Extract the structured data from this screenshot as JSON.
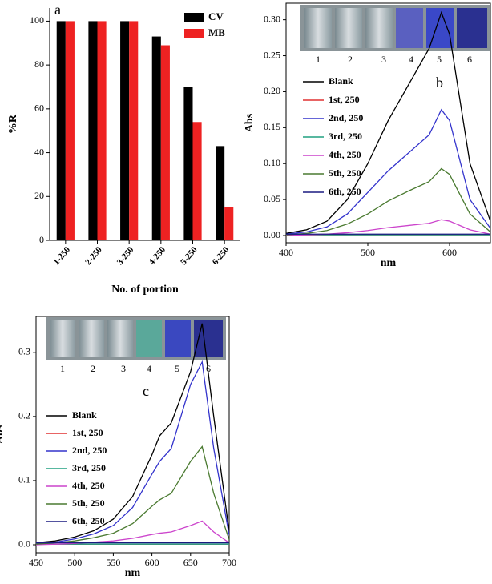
{
  "chart_data": [
    {
      "type": "bar",
      "panel_label": "a",
      "x_label": "No. of portion",
      "y_label": "%R",
      "categories": [
        "1-250",
        "2-250",
        "3-250",
        "4-250",
        "5-250",
        "6-250"
      ],
      "series": [
        {
          "name": "CV",
          "color": "#000000",
          "values": [
            100,
            100,
            100,
            93,
            70,
            43
          ]
        },
        {
          "name": "MB",
          "color": "#ee2222",
          "values": [
            100,
            100,
            100,
            89,
            54,
            15
          ]
        }
      ],
      "ylim": [
        0,
        106
      ],
      "yticks": [
        0,
        20,
        40,
        60,
        80,
        100
      ],
      "legend": "top-right"
    },
    {
      "type": "line",
      "panel_label": "b",
      "x_label": "nm",
      "y_label": "Abs",
      "inset_labels": [
        "1",
        "2",
        "3",
        "4",
        "5",
        "6"
      ],
      "x": [
        400,
        425,
        450,
        475,
        500,
        525,
        550,
        575,
        590,
        600,
        625,
        650
      ],
      "series": [
        {
          "name": "Blank",
          "color": "#000000",
          "values": [
            0.003,
            0.008,
            0.02,
            0.05,
            0.1,
            0.16,
            0.21,
            0.26,
            0.31,
            0.28,
            0.1,
            0.02
          ]
        },
        {
          "name": "1st, 250",
          "color": "#e03030",
          "values": [
            0.001,
            0.001,
            0.001,
            0.001,
            0.001,
            0.001,
            0.001,
            0.001,
            0.001,
            0.001,
            0.001,
            0.001
          ]
        },
        {
          "name": "2nd, 250",
          "color": "#3333cc",
          "values": [
            0.002,
            0.005,
            0.012,
            0.03,
            0.06,
            0.09,
            0.115,
            0.14,
            0.175,
            0.16,
            0.05,
            0.01
          ]
        },
        {
          "name": "3rd, 250",
          "color": "#20a080",
          "values": [
            0.001,
            0.001,
            0.001,
            0.001,
            0.001,
            0.001,
            0.001,
            0.001,
            0.001,
            0.001,
            0.001,
            0.001
          ]
        },
        {
          "name": "4th, 250",
          "color": "#cc44cc",
          "values": [
            0,
            0.001,
            0.002,
            0.004,
            0.007,
            0.011,
            0.014,
            0.017,
            0.022,
            0.02,
            0.008,
            0.002
          ]
        },
        {
          "name": "5th, 250",
          "color": "#4a7a30",
          "values": [
            0.001,
            0.003,
            0.007,
            0.016,
            0.03,
            0.048,
            0.062,
            0.075,
            0.093,
            0.085,
            0.03,
            0.005
          ]
        },
        {
          "name": "6th, 250",
          "color": "#1a1a80",
          "values": [
            0.002,
            0.002,
            0.002,
            0.002,
            0.002,
            0.002,
            0.002,
            0.002,
            0.002,
            0.002,
            0.002,
            0.002
          ]
        }
      ],
      "xlim": [
        400,
        650
      ],
      "xticks": [
        400,
        500,
        600
      ],
      "ylim": [
        -0.01,
        0.323
      ],
      "yticks": [
        {
          "value": 0,
          "label": "0.00"
        },
        {
          "value": 0.05,
          "label": "0.05"
        },
        {
          "value": 0.1,
          "label": "0.10"
        },
        {
          "value": 0.15,
          "label": "0.15"
        },
        {
          "value": 0.2,
          "label": "0.20"
        },
        {
          "value": 0.25,
          "label": "0.25"
        },
        {
          "value": 0.3,
          "label": "0.30"
        }
      ],
      "legend": "left"
    },
    {
      "type": "line",
      "panel_label": "c",
      "x_label": "nm",
      "y_label": "Abs",
      "inset_labels": [
        "1",
        "2",
        "3",
        "4",
        "5",
        "6"
      ],
      "x": [
        450,
        475,
        500,
        525,
        550,
        575,
        600,
        610,
        625,
        650,
        665,
        680,
        700
      ],
      "series": [
        {
          "name": "Blank",
          "color": "#000000",
          "values": [
            0.003,
            0.006,
            0.012,
            0.022,
            0.04,
            0.075,
            0.14,
            0.17,
            0.19,
            0.27,
            0.345,
            0.2,
            0.02
          ]
        },
        {
          "name": "1st, 250",
          "color": "#e03030",
          "values": [
            0.001,
            0.001,
            0.001,
            0.001,
            0.001,
            0.001,
            0.001,
            0.001,
            0.001,
            0.001,
            0.001,
            0.001,
            0.001
          ]
        },
        {
          "name": "2nd, 250",
          "color": "#3333cc",
          "values": [
            0.002,
            0.004,
            0.009,
            0.017,
            0.03,
            0.058,
            0.11,
            0.13,
            0.15,
            0.25,
            0.285,
            0.15,
            0.015
          ]
        },
        {
          "name": "3rd, 250",
          "color": "#20a080",
          "values": [
            0.001,
            0.001,
            0.001,
            0.001,
            0.001,
            0.001,
            0.001,
            0.001,
            0.001,
            0.001,
            0.001,
            0.001,
            0.001
          ]
        },
        {
          "name": "4th, 250",
          "color": "#cc44cc",
          "values": [
            0,
            0.001,
            0.002,
            0.004,
            0.006,
            0.01,
            0.016,
            0.018,
            0.02,
            0.03,
            0.037,
            0.02,
            0.003
          ]
        },
        {
          "name": "5th, 250",
          "color": "#4a7a30",
          "values": [
            0.001,
            0.003,
            0.006,
            0.011,
            0.018,
            0.033,
            0.06,
            0.07,
            0.08,
            0.13,
            0.153,
            0.08,
            0.008
          ]
        },
        {
          "name": "6th, 250",
          "color": "#1a1a80",
          "values": [
            0.003,
            0.003,
            0.003,
            0.003,
            0.003,
            0.003,
            0.003,
            0.003,
            0.003,
            0.003,
            0.003,
            0.003,
            0.003
          ]
        }
      ],
      "xlim": [
        450,
        700
      ],
      "xticks": [
        450,
        500,
        550,
        600,
        650,
        700
      ],
      "ylim": [
        -0.0125,
        0.356
      ],
      "yticks": [
        {
          "value": 0,
          "label": "0.0"
        },
        {
          "value": 0.1,
          "label": "0.1"
        },
        {
          "value": 0.2,
          "label": "0.2"
        },
        {
          "value": 0.3,
          "label": "0.3"
        }
      ],
      "legend": "left"
    }
  ]
}
